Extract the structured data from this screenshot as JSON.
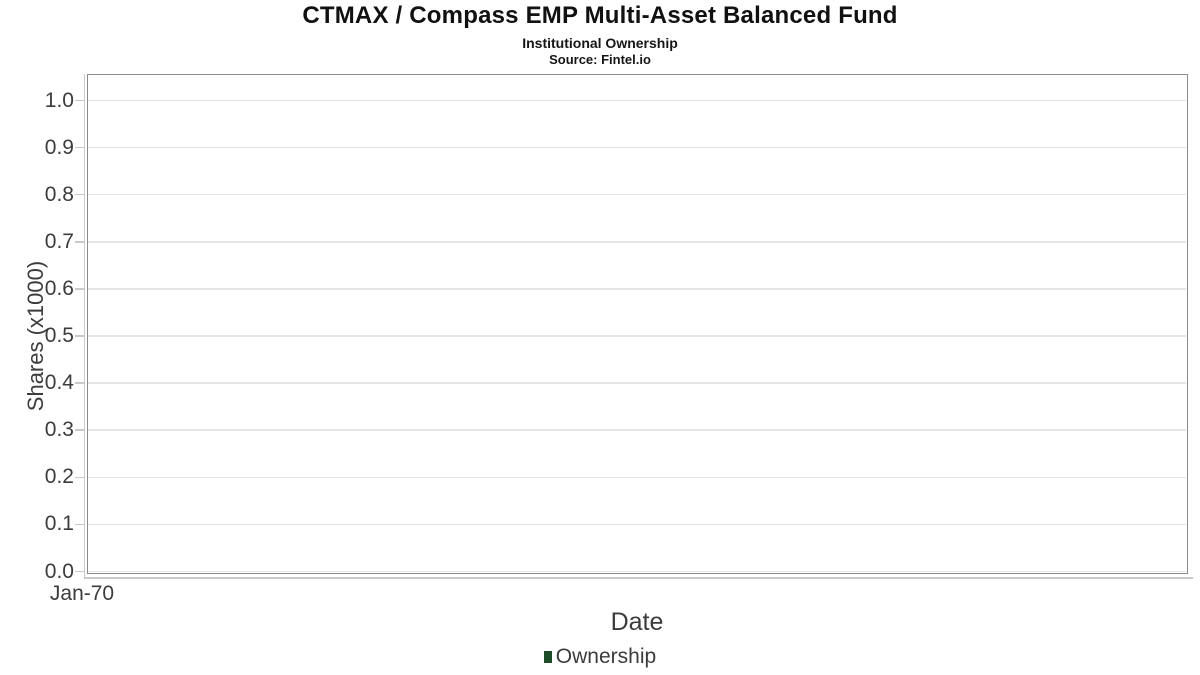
{
  "header": {
    "title": "CTMAX / Compass EMP Multi-Asset Balanced Fund",
    "subtitle": "Institutional Ownership",
    "source": "Source: Fintel.io"
  },
  "chart_data": {
    "type": "bar",
    "title": "CTMAX / Compass EMP Multi-Asset Balanced Fund",
    "subtitle": "Institutional Ownership",
    "source": "Source: Fintel.io",
    "xlabel": "Date",
    "ylabel": "Shares (x1000)",
    "x_tick_labels": [
      "Jan-70"
    ],
    "y_ticks": [
      0.0,
      0.1,
      0.2,
      0.3,
      0.4,
      0.5,
      0.6,
      0.7,
      0.8,
      0.9,
      1.0
    ],
    "y_tick_labels": [
      "0.0",
      "0.1",
      "0.2",
      "0.3",
      "0.4",
      "0.5",
      "0.6",
      "0.7",
      "0.8",
      "0.9",
      "1.0"
    ],
    "ylim": [
      0.0,
      1.05
    ],
    "grid": "horizontal-only",
    "legend_position": "bottom-center",
    "series": [
      {
        "name": "Ownership",
        "color": "#1f4c28",
        "x": [],
        "values": []
      }
    ]
  },
  "legend": {
    "items": [
      {
        "label": "Ownership",
        "color": "#1f4c28"
      }
    ]
  },
  "colors": {
    "background": "#ffffff",
    "plot_border": "#8a8a8a",
    "gridline": "#e5e5e5",
    "axis_line": "#c9c9c9",
    "tick_text": "#3c3c3c",
    "title_text": "#111111",
    "series_ownership": "#1f4c28"
  }
}
